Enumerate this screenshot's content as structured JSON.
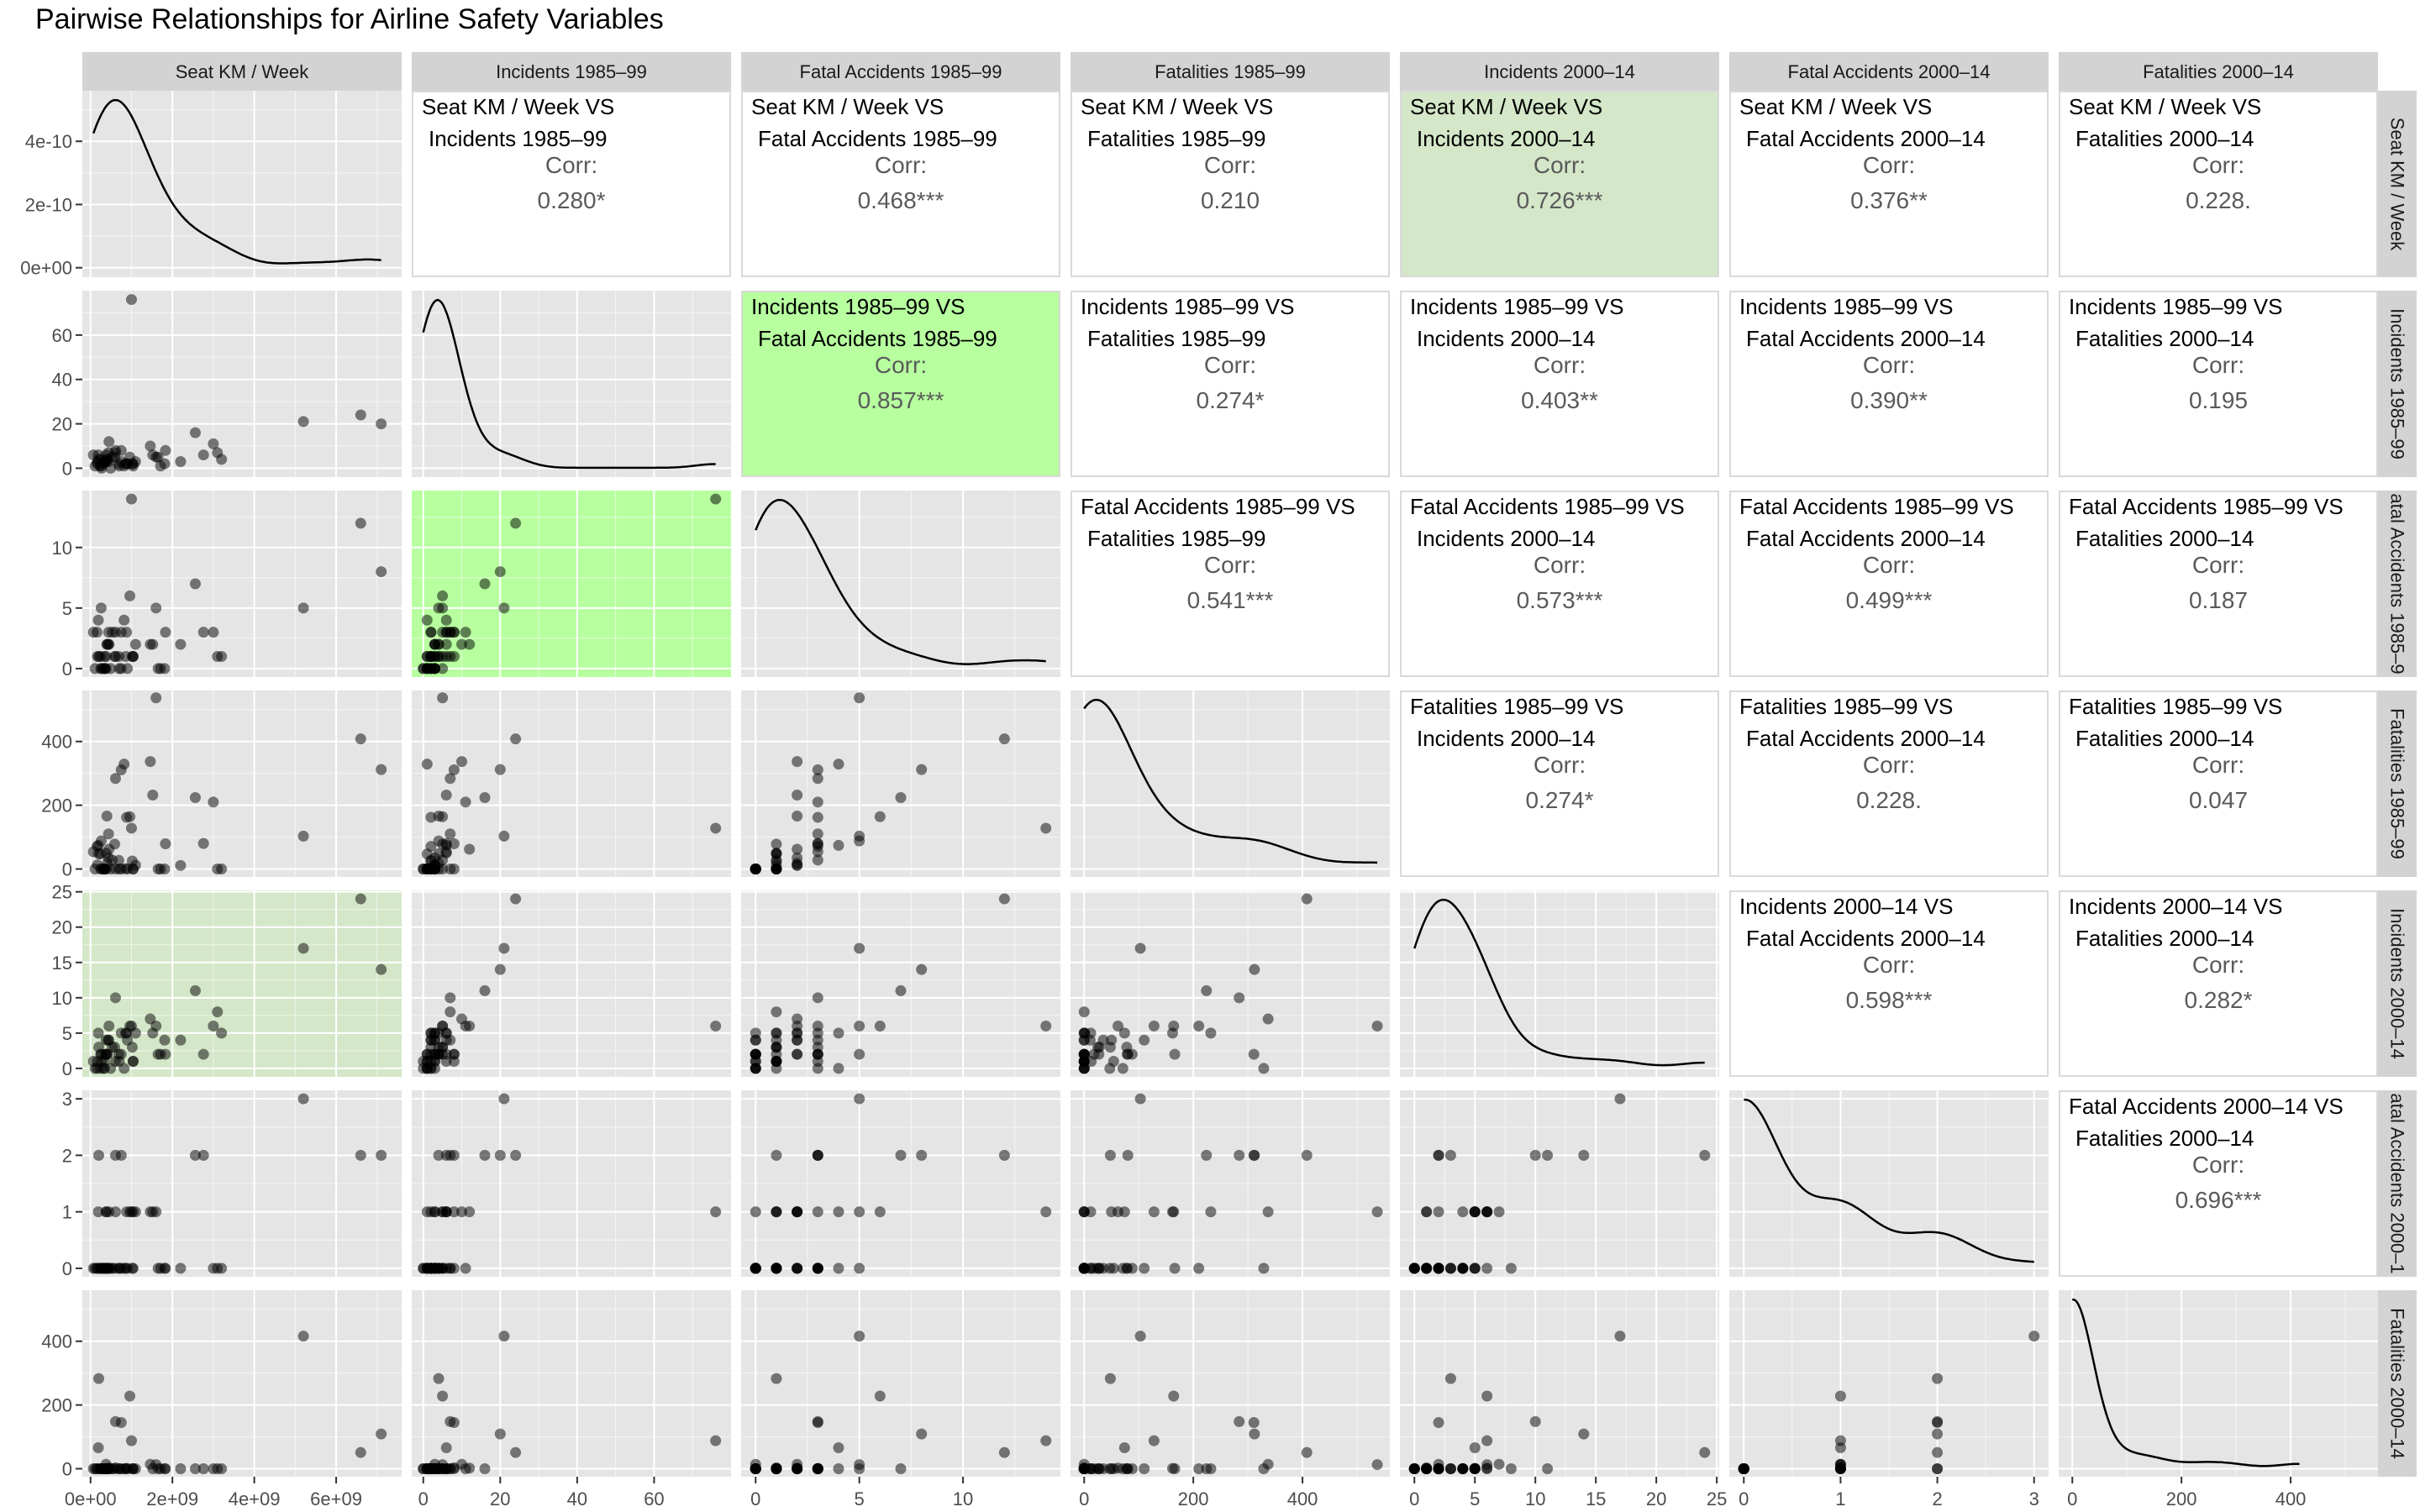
{
  "title": "Pairwise Relationships for Airline Safety Variables",
  "colors": {
    "panel_bg": "#e5e5e5",
    "grid": "#ffffff",
    "strip_bg": "#d3d3d3",
    "point": "#000000",
    "highlight_strong": "#b7ff9f",
    "highlight_soft": "#d4e7c9",
    "corr_text": "#5a5a5a"
  },
  "chart_data": {
    "type": "scatter",
    "variables": [
      "Seat KM / Week",
      "Incidents 1985–99",
      "Fatal Accidents 1985–99",
      "Fatalities 1985–99",
      "Incidents 2000–14",
      "Fatal Accidents 2000–14",
      "Fatalities 2000–14"
    ],
    "right_strip_labels": [
      "Seat KM / Week",
      "Incidents 1985–99",
      "atal Accidents 1985–9",
      "Fatalities 1985–99",
      "Incidents 2000–14",
      "atal Accidents 2000–1",
      "Fatalities 2000–14"
    ],
    "axes": {
      "x": [
        {
          "min": -200000000.0,
          "max": 7600000000.0,
          "ticks": [
            0,
            2000000000.0,
            4000000000.0,
            6000000000.0
          ],
          "labels": [
            "0e+00",
            "2e+09",
            "4e+09",
            "6e+09"
          ]
        },
        {
          "min": -3,
          "max": 80,
          "ticks": [
            0,
            20,
            40,
            60
          ],
          "labels": [
            "0",
            "20",
            "40",
            "60"
          ]
        },
        {
          "min": -0.7,
          "max": 14.7,
          "ticks": [
            0,
            5,
            10
          ],
          "labels": [
            "0",
            "5",
            "10"
          ]
        },
        {
          "min": -25,
          "max": 560,
          "ticks": [
            0,
            200,
            400
          ],
          "labels": [
            "0",
            "200",
            "400"
          ]
        },
        {
          "min": -1.2,
          "max": 25.2,
          "ticks": [
            0,
            5,
            10,
            15,
            20,
            25
          ],
          "labels": [
            "0",
            "5",
            "10",
            "15",
            "20",
            "25"
          ]
        },
        {
          "min": -0.15,
          "max": 3.15,
          "ticks": [
            0,
            1,
            2,
            3
          ],
          "labels": [
            "0",
            "1",
            "2",
            "3"
          ]
        },
        {
          "min": -25,
          "max": 560,
          "ticks": [
            0,
            200,
            400
          ],
          "labels": [
            "0",
            "200",
            "400"
          ]
        }
      ],
      "y": [
        {
          "min": -3e-11,
          "max": 5.6e-10,
          "ticks": [
            0,
            2e-10,
            4e-10
          ],
          "labels": [
            "0e+00",
            "2e-10",
            "4e-10"
          ]
        },
        {
          "min": -4,
          "max": 80,
          "ticks": [
            0,
            20,
            40,
            60
          ],
          "labels": [
            "0",
            "20",
            "40",
            "60"
          ]
        },
        {
          "min": -0.7,
          "max": 14.7,
          "ticks": [
            0,
            5,
            10
          ],
          "labels": [
            "0",
            "5",
            "10"
          ]
        },
        {
          "min": -25,
          "max": 560,
          "ticks": [
            0,
            200,
            400
          ],
          "labels": [
            "0",
            "200",
            "400"
          ]
        },
        {
          "min": -1.2,
          "max": 25.2,
          "ticks": [
            0,
            5,
            10,
            15,
            20,
            25
          ],
          "labels": [
            "0",
            "5",
            "10",
            "15",
            "20",
            "25"
          ]
        },
        {
          "min": -0.15,
          "max": 3.15,
          "ticks": [
            0,
            1,
            2,
            3
          ],
          "labels": [
            "0",
            "1",
            "2",
            "3"
          ]
        },
        {
          "min": -25,
          "max": 560,
          "ticks": [
            0,
            200,
            400
          ],
          "labels": [
            "0",
            "200",
            "400"
          ]
        }
      ]
    },
    "airlines": [
      [
        320000000.0,
        2,
        0,
        0,
        0,
        0,
        0
      ],
      [
        1000000000.0,
        76,
        14,
        128,
        6,
        1,
        88
      ],
      [
        7100000000.0,
        20,
        8,
        312,
        14,
        2,
        109
      ],
      [
        490000000.0,
        0,
        0,
        0,
        0,
        0,
        0
      ],
      [
        690000000.0,
        2,
        1,
        27,
        2,
        0,
        0
      ],
      [
        170000000.0,
        3,
        1,
        13,
        1,
        0,
        0
      ],
      [
        5200000000.0,
        21,
        5,
        103,
        17,
        3,
        416
      ],
      [
        880000000.0,
        2,
        3,
        162,
        5,
        1,
        1
      ],
      [
        1460000000.0,
        10,
        2,
        337,
        7,
        1,
        14
      ],
      [
        70000000.0,
        6,
        3,
        54,
        1,
        0,
        0
      ],
      [
        340000000.0,
        3,
        1,
        0,
        1,
        0,
        0
      ],
      [
        590000000.0,
        5,
        1,
        78,
        3,
        0,
        0
      ],
      [
        3100000000.0,
        7,
        1,
        0,
        8,
        0,
        0
      ],
      [
        1520000000.0,
        6,
        2,
        232,
        5,
        1,
        0
      ],
      [
        400000000.0,
        4,
        2,
        166,
        2,
        0,
        0
      ],
      [
        2560000000.0,
        16,
        7,
        224,
        11,
        2,
        0
      ],
      [
        6600000000.0,
        24,
        12,
        408,
        24,
        2,
        51
      ],
      [
        610000000.0,
        8,
        1,
        0,
        1,
        1,
        3
      ],
      [
        1830000000.0,
        8,
        3,
        79,
        2,
        0,
        0
      ],
      [
        250000000.0,
        1,
        0,
        0,
        2,
        0,
        0
      ],
      [
        410000000.0,
        4,
        2,
        18,
        2,
        0,
        0
      ],
      [
        1040000000.0,
        2,
        1,
        0,
        1,
        0,
        0
      ],
      [
        110000000.0,
        1,
        0,
        0,
        0,
        0,
        0
      ],
      [
        270000000.0,
        0,
        0,
        0,
        1,
        0,
        0
      ],
      [
        820000000.0,
        1,
        4,
        329,
        0,
        0,
        0
      ],
      [
        340000000.0,
        3,
        0,
        0,
        0,
        0,
        0
      ],
      [
        1710000000.0,
        1,
        0,
        0,
        2,
        0,
        0
      ],
      [
        380000000.0,
        6,
        1,
        50,
        4,
        1,
        0
      ],
      [
        190000000.0,
        6,
        4,
        74,
        5,
        1,
        66
      ],
      [
        860000000.0,
        2,
        1,
        1,
        5,
        0,
        0
      ],
      [
        1810000000.0,
        2,
        0,
        0,
        4,
        0,
        0
      ],
      [
        160000000.0,
        2,
        3,
        71,
        0,
        0,
        0
      ],
      [
        440000000.0,
        3,
        2,
        35,
        4,
        0,
        0
      ],
      [
        1040000000.0,
        1,
        1,
        0,
        1,
        1,
        0
      ],
      [
        960000000.0,
        5,
        6,
        164,
        6,
        1,
        228
      ],
      [
        440000000.0,
        7,
        3,
        110,
        4,
        0,
        0
      ],
      [
        530000000.0,
        5,
        3,
        28,
        3,
        0,
        0
      ],
      [
        360000000.0,
        3,
        0,
        0,
        2,
        0,
        0
      ],
      [
        240000000.0,
        1,
        1,
        47,
        0,
        0,
        0
      ],
      [
        200000000.0,
        4,
        1,
        48,
        3,
        2,
        283
      ],
      [
        610000000.0,
        7,
        3,
        284,
        10,
        2,
        148
      ],
      [
        1020000000.0,
        2,
        1,
        25,
        3,
        0,
        0
      ],
      [
        260000000.0,
        4,
        5,
        88,
        2,
        0,
        0
      ],
      [
        1600000000.0,
        5,
        5,
        537,
        6,
        1,
        13
      ],
      [
        380000000.0,
        3,
        0,
        0,
        2,
        1,
        14
      ],
      [
        2200000000.0,
        3,
        2,
        11,
        4,
        0,
        0
      ],
      [
        750000000.0,
        3,
        0,
        0,
        5,
        0,
        0
      ],
      [
        2760000000.0,
        6,
        3,
        80,
        2,
        2,
        0
      ],
      [
        1100000000.0,
        3,
        2,
        12,
        5,
        1,
        0
      ],
      [
        1650000000.0,
        5,
        0,
        0,
        2,
        0,
        0
      ],
      [
        450000000.0,
        12,
        2,
        62,
        6,
        1,
        2
      ],
      [
        750000000.0,
        8,
        3,
        311,
        2,
        2,
        145
      ],
      [
        3200000000.0,
        4,
        1,
        0,
        5,
        0,
        0
      ],
      [
        900000000.0,
        2,
        0,
        0,
        4,
        0,
        0
      ],
      [
        3000000000.0,
        11,
        3,
        210,
        6,
        0,
        0
      ],
      [
        700000000.0,
        1,
        0,
        0,
        1,
        0,
        0
      ]
    ],
    "correlations": [
      {
        "row": 0,
        "col": 1,
        "pair": [
          "Seat KM / Week  VS",
          "Incidents 1985–99"
        ],
        "label": "Corr:",
        "value": "0.280*"
      },
      {
        "row": 0,
        "col": 2,
        "pair": [
          "Seat KM / Week  VS",
          "Fatal Accidents 1985–99"
        ],
        "label": "Corr:",
        "value": "0.468***"
      },
      {
        "row": 0,
        "col": 3,
        "pair": [
          "Seat KM / Week  VS",
          "Fatalities 1985–99"
        ],
        "label": "Corr:",
        "value": "0.210"
      },
      {
        "row": 0,
        "col": 4,
        "pair": [
          "Seat KM / Week  VS",
          "Incidents 2000–14"
        ],
        "label": "Corr:",
        "value": "0.726***",
        "highlight": "soft"
      },
      {
        "row": 0,
        "col": 5,
        "pair": [
          "Seat KM / Week  VS",
          "Fatal Accidents 2000–14"
        ],
        "label": "Corr:",
        "value": "0.376**"
      },
      {
        "row": 0,
        "col": 6,
        "pair": [
          "Seat KM / Week  VS",
          "Fatalities 2000–14"
        ],
        "label": "Corr:",
        "value": "0.228."
      },
      {
        "row": 1,
        "col": 2,
        "pair": [
          "Incidents 1985–99  VS",
          "Fatal Accidents 1985–99"
        ],
        "label": "Corr:",
        "value": "0.857***",
        "highlight": "strong"
      },
      {
        "row": 1,
        "col": 3,
        "pair": [
          "Incidents 1985–99  VS",
          "Fatalities 1985–99"
        ],
        "label": "Corr:",
        "value": "0.274*"
      },
      {
        "row": 1,
        "col": 4,
        "pair": [
          "Incidents 1985–99  VS",
          "Incidents 2000–14"
        ],
        "label": "Corr:",
        "value": "0.403**"
      },
      {
        "row": 1,
        "col": 5,
        "pair": [
          "Incidents 1985–99  VS",
          "Fatal Accidents 2000–14"
        ],
        "label": "Corr:",
        "value": "0.390**"
      },
      {
        "row": 1,
        "col": 6,
        "pair": [
          "Incidents 1985–99  VS",
          "Fatalities 2000–14"
        ],
        "label": "Corr:",
        "value": "0.195"
      },
      {
        "row": 2,
        "col": 3,
        "pair": [
          "Fatal Accidents 1985–99  VS",
          "Fatalities 1985–99"
        ],
        "label": "Corr:",
        "value": "0.541***"
      },
      {
        "row": 2,
        "col": 4,
        "pair": [
          "Fatal Accidents 1985–99  VS",
          "Incidents 2000–14"
        ],
        "label": "Corr:",
        "value": "0.573***"
      },
      {
        "row": 2,
        "col": 5,
        "pair": [
          "Fatal Accidents 1985–99  VS",
          "Fatal Accidents 2000–14"
        ],
        "label": "Corr:",
        "value": "0.499***"
      },
      {
        "row": 2,
        "col": 6,
        "pair": [
          "Fatal Accidents 1985–99  VS",
          "Fatalities 2000–14"
        ],
        "label": "Corr:",
        "value": "0.187"
      },
      {
        "row": 3,
        "col": 4,
        "pair": [
          "Fatalities 1985–99  VS",
          "Incidents 2000–14"
        ],
        "label": "Corr:",
        "value": "0.274*"
      },
      {
        "row": 3,
        "col": 5,
        "pair": [
          "Fatalities 1985–99  VS",
          "Fatal Accidents 2000–14"
        ],
        "label": "Corr:",
        "value": "0.228."
      },
      {
        "row": 3,
        "col": 6,
        "pair": [
          "Fatalities 1985–99  VS",
          "Fatalities 2000–14"
        ],
        "label": "Corr:",
        "value": "0.047"
      },
      {
        "row": 4,
        "col": 5,
        "pair": [
          "Incidents 2000–14  VS",
          "Fatal Accidents 2000–14"
        ],
        "label": "Corr:",
        "value": "0.598***"
      },
      {
        "row": 4,
        "col": 6,
        "pair": [
          "Incidents 2000–14  VS",
          "Fatalities 2000–14"
        ],
        "label": "Corr:",
        "value": "0.282*"
      },
      {
        "row": 5,
        "col": 6,
        "pair": [
          "Fatal Accidents 2000–14  VS",
          "Fatalities 2000–14"
        ],
        "label": "Corr:",
        "value": "0.696***"
      }
    ],
    "highlighted_scatter_panels": [
      {
        "row": 2,
        "col": 1,
        "highlight": "strong"
      },
      {
        "row": 4,
        "col": 0,
        "highlight": "soft"
      }
    ],
    "grid": true,
    "legend": "none"
  }
}
